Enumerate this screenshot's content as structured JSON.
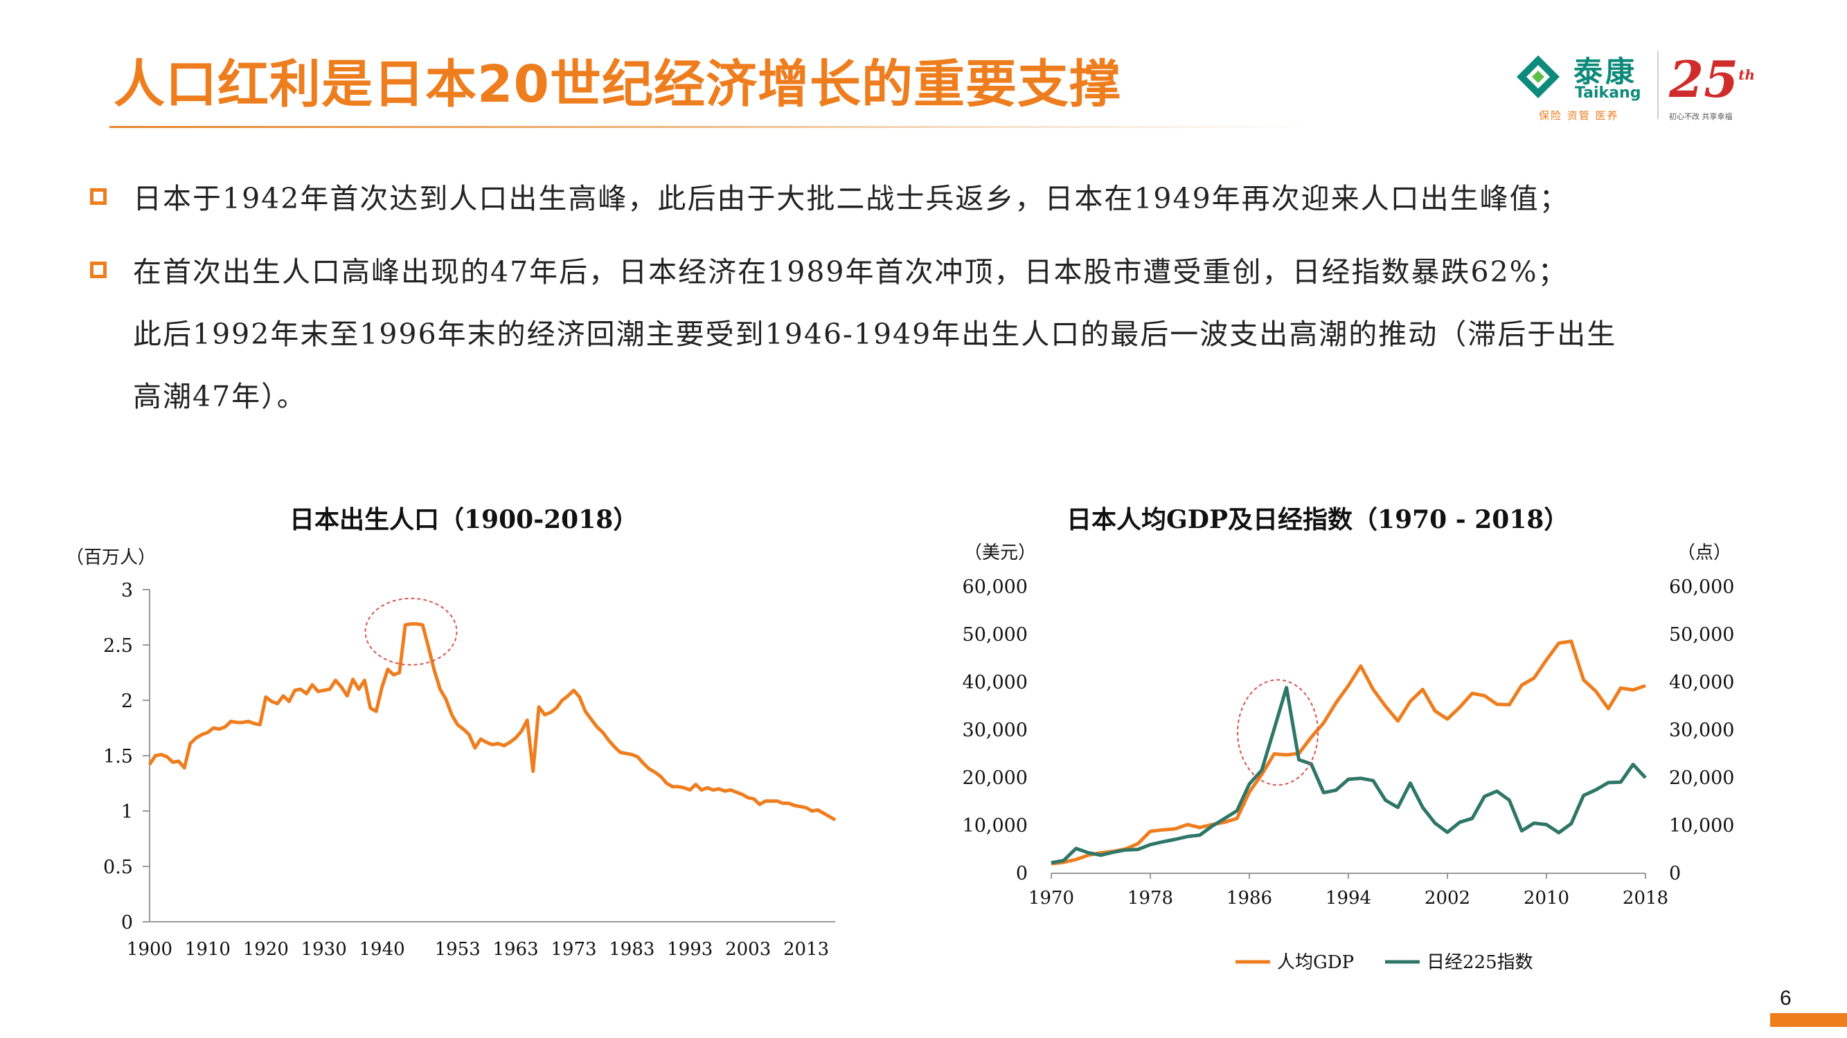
{
  "title": "人口红利是日本20世纪经济增长的重要支撑",
  "logo": {
    "brand_cn": "泰康",
    "brand_en": "Taikang",
    "slogan": "保险 资管 医养",
    "anniv": "25",
    "anniv_sup": "th",
    "anniv_sub": "初心不改 共享幸福"
  },
  "bullets": [
    {
      "lines": [
        "日本于1942年首次达到人口出生高峰，此后由于大批二战士兵返乡，日本在1949年再次迎来人口出生峰值；"
      ]
    },
    {
      "lines": [
        "在首次出生人口高峰出现的47年后，日本经济在1989年首次冲顶，日本股市遭受重创，日经指数暴跌62%；",
        "此后1992年末至1996年末的经济回潮主要受到1946-1949年出生人口的最后一波支出高潮的推动（滞后于出生",
        "高潮47年）。"
      ]
    }
  ],
  "page_number": "6",
  "colors": {
    "accent": "#ee7d1e",
    "teal": "#2e7667",
    "highlight_circle": "#d9534f"
  },
  "chart_data": [
    {
      "type": "line",
      "title": "日本出生人口（1900-2018）",
      "ylabel": "（百万人）",
      "ylim": [
        0,
        3
      ],
      "yticks": [
        "3",
        "2.5",
        "2",
        "1.5",
        "1",
        "0.5",
        "0"
      ],
      "xticks": [
        "1900",
        "1910",
        "1920",
        "1930",
        "1940",
        "1953",
        "1963",
        "1973",
        "1983",
        "1993",
        "2003",
        "2013"
      ],
      "grid": false,
      "annotation": "highlight circle around 1943-1947 peak",
      "series": [
        {
          "color": "#ee7d1e",
          "x": [
            1900,
            1901,
            1902,
            1903,
            1904,
            1905,
            1906,
            1907,
            1908,
            1909,
            1910,
            1911,
            1912,
            1913,
            1914,
            1915,
            1916,
            1917,
            1918,
            1919,
            1920,
            1921,
            1922,
            1923,
            1924,
            1925,
            1926,
            1927,
            1928,
            1929,
            1930,
            1931,
            1932,
            1933,
            1934,
            1935,
            1936,
            1937,
            1938,
            1939,
            1940,
            1941,
            1942,
            1943,
            1944,
            1945,
            1946,
            1947,
            1948,
            1949,
            1950,
            1951,
            1952,
            1953,
            1954,
            1955,
            1956,
            1957,
            1958,
            1959,
            1960,
            1961,
            1962,
            1963,
            1964,
            1965,
            1966,
            1967,
            1968,
            1969,
            1970,
            1971,
            1972,
            1973,
            1974,
            1975,
            1976,
            1977,
            1978,
            1979,
            1980,
            1981,
            1982,
            1983,
            1984,
            1985,
            1986,
            1987,
            1988,
            1989,
            1990,
            1991,
            1992,
            1993,
            1994,
            1995,
            1996,
            1997,
            1998,
            1999,
            2000,
            2001,
            2002,
            2003,
            2004,
            2005,
            2006,
            2007,
            2008,
            2009,
            2010,
            2011,
            2012,
            2013,
            2014,
            2015,
            2016,
            2017,
            2018
          ],
          "y": [
            1.42,
            1.5,
            1.51,
            1.49,
            1.44,
            1.45,
            1.39,
            1.61,
            1.66,
            1.69,
            1.71,
            1.75,
            1.74,
            1.76,
            1.81,
            1.8,
            1.8,
            1.81,
            1.79,
            1.78,
            2.03,
            1.99,
            1.97,
            2.04,
            1.99,
            2.09,
            2.1,
            2.06,
            2.14,
            2.08,
            2.09,
            2.1,
            2.18,
            2.12,
            2.04,
            2.19,
            2.1,
            2.18,
            1.93,
            1.9,
            2.12,
            2.28,
            2.23,
            2.25,
            2.68,
            2.69,
            2.69,
            2.68,
            2.48,
            2.27,
            2.1,
            2.01,
            1.87,
            1.78,
            1.74,
            1.69,
            1.57,
            1.65,
            1.62,
            1.6,
            1.61,
            1.59,
            1.62,
            1.66,
            1.72,
            1.82,
            1.36,
            1.94,
            1.87,
            1.89,
            1.93,
            2.0,
            2.04,
            2.09,
            2.03,
            1.9,
            1.83,
            1.76,
            1.71,
            1.64,
            1.58,
            1.53,
            1.52,
            1.51,
            1.49,
            1.43,
            1.38,
            1.35,
            1.31,
            1.25,
            1.22,
            1.22,
            1.21,
            1.19,
            1.24,
            1.19,
            1.21,
            1.19,
            1.2,
            1.18,
            1.19,
            1.17,
            1.15,
            1.12,
            1.11,
            1.06,
            1.09,
            1.09,
            1.09,
            1.07,
            1.07,
            1.05,
            1.04,
            1.03,
            1.0,
            1.01,
            0.98,
            0.95,
            0.92
          ]
        }
      ]
    },
    {
      "type": "line",
      "title": "日本人均GDP及日经指数（1970 - 2018）",
      "ylabel_left": "（美元）",
      "ylabel_right": "（点）",
      "ylim_left": [
        0,
        60000
      ],
      "ylim_right": [
        0,
        60000
      ],
      "yticks_left": [
        "60,000",
        "50,000",
        "40,000",
        "30,000",
        "20,000",
        "10,000",
        "0"
      ],
      "yticks_right": [
        "60,000",
        "50,000",
        "40,000",
        "30,000",
        "20,000",
        "10,000",
        "0"
      ],
      "xticks": [
        "1970",
        "1978",
        "1986",
        "1994",
        "2002",
        "2010",
        "2018"
      ],
      "grid": false,
      "legend_position": "bottom",
      "annotation": "highlight circle around 1987-1990 peak",
      "x": [
        1970,
        1971,
        1972,
        1973,
        1974,
        1975,
        1976,
        1977,
        1978,
        1979,
        1980,
        1981,
        1982,
        1983,
        1984,
        1985,
        1986,
        1987,
        1988,
        1989,
        1990,
        1991,
        1992,
        1993,
        1994,
        1995,
        1996,
        1997,
        1998,
        1999,
        2000,
        2001,
        2002,
        2003,
        2004,
        2005,
        2006,
        2007,
        2008,
        2009,
        2010,
        2011,
        2012,
        2013,
        2014,
        2015,
        2016,
        2017,
        2018
      ],
      "series": [
        {
          "name": "人均GDP",
          "color": "#ee7d1e",
          "values": [
            2000,
            2300,
            2900,
            3800,
            4300,
            4600,
            5100,
            6200,
            8800,
            9100,
            9300,
            10200,
            9600,
            10200,
            10700,
            11500,
            17000,
            20700,
            25000,
            24800,
            25100,
            28500,
            31500,
            35700,
            39300,
            43400,
            38500,
            35000,
            31900,
            36000,
            38500,
            34000,
            32300,
            34800,
            37700,
            37200,
            35400,
            35300,
            39400,
            40900,
            44700,
            48200,
            48600,
            40500,
            38100,
            34500,
            38800,
            38400,
            39300
          ]
        },
        {
          "name": "日经225指数",
          "color": "#2e7667",
          "values": [
            2200,
            2700,
            5200,
            4300,
            3800,
            4400,
            4900,
            5000,
            6000,
            6600,
            7100,
            7700,
            8000,
            9900,
            11500,
            13100,
            18700,
            21600,
            30200,
            38900,
            23800,
            22900,
            16900,
            17400,
            19700,
            19900,
            19400,
            15300,
            13800,
            18900,
            13800,
            10500,
            8600,
            10700,
            11500,
            16100,
            17200,
            15300,
            8900,
            10500,
            10200,
            8500,
            10400,
            16300,
            17500,
            19000,
            19100,
            22800,
            20000
          ]
        }
      ]
    }
  ]
}
